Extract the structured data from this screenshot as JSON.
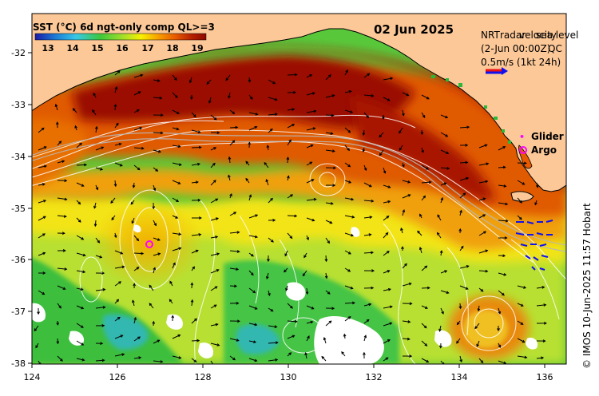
{
  "map": {
    "title": "SST (°C) 6d ngt-only comp QL>=3",
    "date": "02 Jun 2025",
    "colorbar_ticks": [
      "13",
      "14",
      "15",
      "16",
      "17",
      "18",
      "19"
    ],
    "colorbar_colors": [
      "#1a1aa8",
      "#1c7cd6",
      "#38c8e8",
      "#3cc83c",
      "#a8e028",
      "#f8f000",
      "#f8a000",
      "#e85a00",
      "#b41e00",
      "#8c0a00"
    ],
    "info_line1a": "NRT",
    "info_line1b": "radar",
    "info_line1c": "sea level",
    "info_line1d": "velocity",
    "info_line2a": "(2-Jun 00:00Z)",
    "info_line2b": "QC",
    "info_line3": "0.5m/s (1kt 24h)",
    "legend_glider": "Glider",
    "legend_argo": "Argo",
    "glider_symbol": "•",
    "credit": "© IMOS 10-Jun-2025 11:57 Hobart",
    "x_ticks": [
      "124",
      "126",
      "128",
      "130",
      "132",
      "134",
      "136"
    ],
    "y_ticks": [
      "-32",
      "-33",
      "-34",
      "-35",
      "-36",
      "-37",
      "-38"
    ],
    "land_color": "#fcc898",
    "marker_color": "#ff00ff",
    "vector_ref_colors": [
      "#1111ee",
      "#ee1111"
    ]
  }
}
